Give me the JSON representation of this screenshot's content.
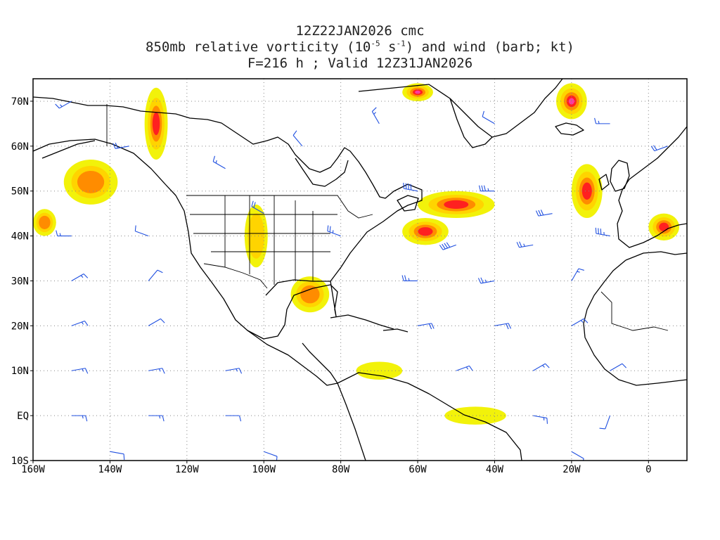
{
  "title": {
    "line1": "12Z22JAN2026 cmc",
    "line2_prefix": "850mb relative vorticity (10",
    "line2_exp1": "-5",
    "line2_mid": " s",
    "line2_exp2": "-1",
    "line2_suffix": ") and wind (barb; kt)",
    "line3": "F=216 h ; Valid 12Z31JAN2026"
  },
  "axes": {
    "lon_range": [
      -160,
      10
    ],
    "lat_range": [
      -10,
      75
    ],
    "lon_ticks": [
      {
        "value": -160,
        "label": "160W"
      },
      {
        "value": -140,
        "label": "140W"
      },
      {
        "value": -120,
        "label": "120W"
      },
      {
        "value": -100,
        "label": "100W"
      },
      {
        "value": -80,
        "label": "80W"
      },
      {
        "value": -60,
        "label": "60W"
      },
      {
        "value": -40,
        "label": "40W"
      },
      {
        "value": -20,
        "label": "20W"
      },
      {
        "value": 0,
        "label": "0"
      }
    ],
    "lat_ticks": [
      {
        "value": 70,
        "label": "70N"
      },
      {
        "value": 60,
        "label": "60N"
      },
      {
        "value": 50,
        "label": "50N"
      },
      {
        "value": 40,
        "label": "40N"
      },
      {
        "value": 30,
        "label": "30N"
      },
      {
        "value": 20,
        "label": "20N"
      },
      {
        "value": 10,
        "label": "10N"
      },
      {
        "value": 0,
        "label": "EQ"
      },
      {
        "value": -10,
        "label": "10S"
      }
    ],
    "grid": "dotted"
  },
  "colors": {
    "low": "#f2f20a",
    "mid": "#ffd400",
    "high": "#ff8c00",
    "peak": "#ff2020",
    "extreme": "#ff3aa0",
    "barb": "#2050e0",
    "coast": "#000000"
  },
  "vorticity_features": [
    {
      "name": "alaska-gyre",
      "lon": -145,
      "lat": 52,
      "intensity": 3,
      "rx": 7,
      "ry": 5
    },
    {
      "name": "pacific-nw-band",
      "lon": -128,
      "lat": 65,
      "intensity": 4,
      "rx": 3,
      "ry": 8
    },
    {
      "name": "north-pacific-west",
      "lon": -157,
      "lat": 43,
      "intensity": 3,
      "rx": 3,
      "ry": 3
    },
    {
      "name": "gulf-coast",
      "lon": -88,
      "lat": 27,
      "intensity": 3,
      "rx": 5,
      "ry": 4
    },
    {
      "name": "atlantic-low-1",
      "lon": -50,
      "lat": 47,
      "intensity": 4,
      "rx": 10,
      "ry": 3
    },
    {
      "name": "atlantic-low-2",
      "lon": -58,
      "lat": 41,
      "intensity": 4,
      "rx": 6,
      "ry": 3
    },
    {
      "name": "iceland-low",
      "lon": -20,
      "lat": 70,
      "intensity": 5,
      "rx": 4,
      "ry": 4
    },
    {
      "name": "greenland-tip",
      "lon": -60,
      "lat": 72,
      "intensity": 5,
      "rx": 4,
      "ry": 2
    },
    {
      "name": "north-sea",
      "lon": -16,
      "lat": 50,
      "intensity": 4,
      "rx": 4,
      "ry": 6
    },
    {
      "name": "mediterranean",
      "lon": 4,
      "lat": 42,
      "intensity": 4,
      "rx": 4,
      "ry": 3
    },
    {
      "name": "rockies-band",
      "lon": -102,
      "lat": 40,
      "intensity": 2,
      "rx": 3,
      "ry": 7
    },
    {
      "name": "caribbean",
      "lon": -70,
      "lat": 10,
      "intensity": 1,
      "rx": 6,
      "ry": 2
    },
    {
      "name": "south-atlantic",
      "lon": -45,
      "lat": 0,
      "intensity": 1,
      "rx": 8,
      "ry": 2
    }
  ],
  "wind_barbs": [
    {
      "lon": -150,
      "lat": 70,
      "dir": 240,
      "kt": 15
    },
    {
      "lon": -135,
      "lat": 60,
      "dir": 260,
      "kt": 20
    },
    {
      "lon": -110,
      "lat": 55,
      "dir": 300,
      "kt": 15
    },
    {
      "lon": -90,
      "lat": 60,
      "dir": 320,
      "kt": 10
    },
    {
      "lon": -70,
      "lat": 65,
      "dir": 330,
      "kt": 15
    },
    {
      "lon": -40,
      "lat": 65,
      "dir": 300,
      "kt": 10
    },
    {
      "lon": -10,
      "lat": 65,
      "dir": 270,
      "kt": 15
    },
    {
      "lon": 5,
      "lat": 60,
      "dir": 250,
      "kt": 20
    },
    {
      "lon": -60,
      "lat": 50,
      "dir": 280,
      "kt": 40
    },
    {
      "lon": -40,
      "lat": 50,
      "dir": 270,
      "kt": 35
    },
    {
      "lon": -25,
      "lat": 45,
      "dir": 260,
      "kt": 30
    },
    {
      "lon": -50,
      "lat": 38,
      "dir": 250,
      "kt": 40
    },
    {
      "lon": -30,
      "lat": 38,
      "dir": 260,
      "kt": 25
    },
    {
      "lon": -10,
      "lat": 40,
      "dir": 280,
      "kt": 35
    },
    {
      "lon": -150,
      "lat": 40,
      "dir": 270,
      "kt": 15
    },
    {
      "lon": -130,
      "lat": 40,
      "dir": 290,
      "kt": 10
    },
    {
      "lon": -100,
      "lat": 45,
      "dir": 300,
      "kt": 20
    },
    {
      "lon": -80,
      "lat": 40,
      "dir": 290,
      "kt": 25
    },
    {
      "lon": -150,
      "lat": 30,
      "dir": 60,
      "kt": 15
    },
    {
      "lon": -130,
      "lat": 30,
      "dir": 40,
      "kt": 10
    },
    {
      "lon": -60,
      "lat": 30,
      "dir": 270,
      "kt": 25
    },
    {
      "lon": -40,
      "lat": 30,
      "dir": 260,
      "kt": 25
    },
    {
      "lon": -20,
      "lat": 30,
      "dir": 30,
      "kt": 15
    },
    {
      "lon": -150,
      "lat": 20,
      "dir": 70,
      "kt": 15
    },
    {
      "lon": -130,
      "lat": 20,
      "dir": 60,
      "kt": 10
    },
    {
      "lon": -60,
      "lat": 20,
      "dir": 80,
      "kt": 20
    },
    {
      "lon": -40,
      "lat": 20,
      "dir": 80,
      "kt": 20
    },
    {
      "lon": -20,
      "lat": 20,
      "dir": 60,
      "kt": 15
    },
    {
      "lon": -150,
      "lat": 10,
      "dir": 80,
      "kt": 15
    },
    {
      "lon": -130,
      "lat": 10,
      "dir": 80,
      "kt": 15
    },
    {
      "lon": -110,
      "lat": 10,
      "dir": 80,
      "kt": 15
    },
    {
      "lon": -50,
      "lat": 10,
      "dir": 70,
      "kt": 15
    },
    {
      "lon": -30,
      "lat": 10,
      "dir": 60,
      "kt": 15
    },
    {
      "lon": -10,
      "lat": 10,
      "dir": 60,
      "kt": 10
    },
    {
      "lon": -150,
      "lat": 0,
      "dir": 90,
      "kt": 15
    },
    {
      "lon": -130,
      "lat": 0,
      "dir": 90,
      "kt": 15
    },
    {
      "lon": -110,
      "lat": 0,
      "dir": 90,
      "kt": 10
    },
    {
      "lon": -30,
      "lat": 0,
      "dir": 100,
      "kt": 15
    },
    {
      "lon": -10,
      "lat": 0,
      "dir": 200,
      "kt": 10
    },
    {
      "lon": -140,
      "lat": -8,
      "dir": 100,
      "kt": 10
    },
    {
      "lon": -100,
      "lat": -8,
      "dir": 110,
      "kt": 10
    },
    {
      "lon": -20,
      "lat": -8,
      "dir": 120,
      "kt": 10
    }
  ]
}
